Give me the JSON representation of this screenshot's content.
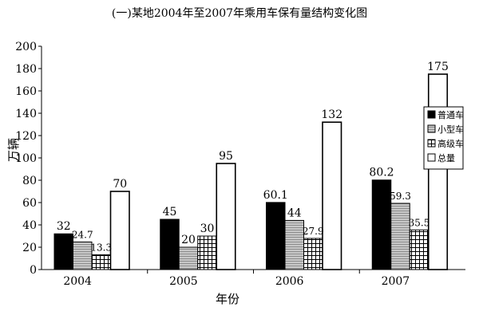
{
  "chart_data": {
    "type": "bar",
    "title": "(一)某地2004年至2007年乘用车保有量结构变化图",
    "xlabel": "年份",
    "ylabel": "万辆",
    "categories": [
      "2004",
      "2005",
      "2006",
      "2007"
    ],
    "ylim": [
      0,
      200
    ],
    "yticks": [
      "0",
      "20",
      "40",
      "60",
      "80",
      "100",
      "120",
      "140",
      "160",
      "180",
      "200"
    ],
    "grid": false,
    "legend_position": "right",
    "series": [
      {
        "name": "普通车",
        "values": [
          32,
          45,
          60.1,
          80.2
        ],
        "labels": [
          "32",
          "45",
          "60.1",
          "80.2"
        ],
        "fill": "#000000"
      },
      {
        "name": "小型车",
        "values": [
          24.7,
          20,
          44,
          59.3
        ],
        "labels": [
          "24.7",
          "20",
          "44",
          "59.3"
        ],
        "fill": "#b4b4b4"
      },
      {
        "name": "高级车",
        "values": [
          13.3,
          30,
          27.9,
          35.5
        ],
        "labels": [
          "13.3",
          "30",
          "27.9",
          "35.5"
        ],
        "fill": "grid"
      },
      {
        "name": "总量",
        "values": [
          70,
          95,
          132,
          175
        ],
        "labels": [
          "70",
          "95",
          "132",
          "175"
        ],
        "fill": "#ffffff"
      }
    ]
  }
}
